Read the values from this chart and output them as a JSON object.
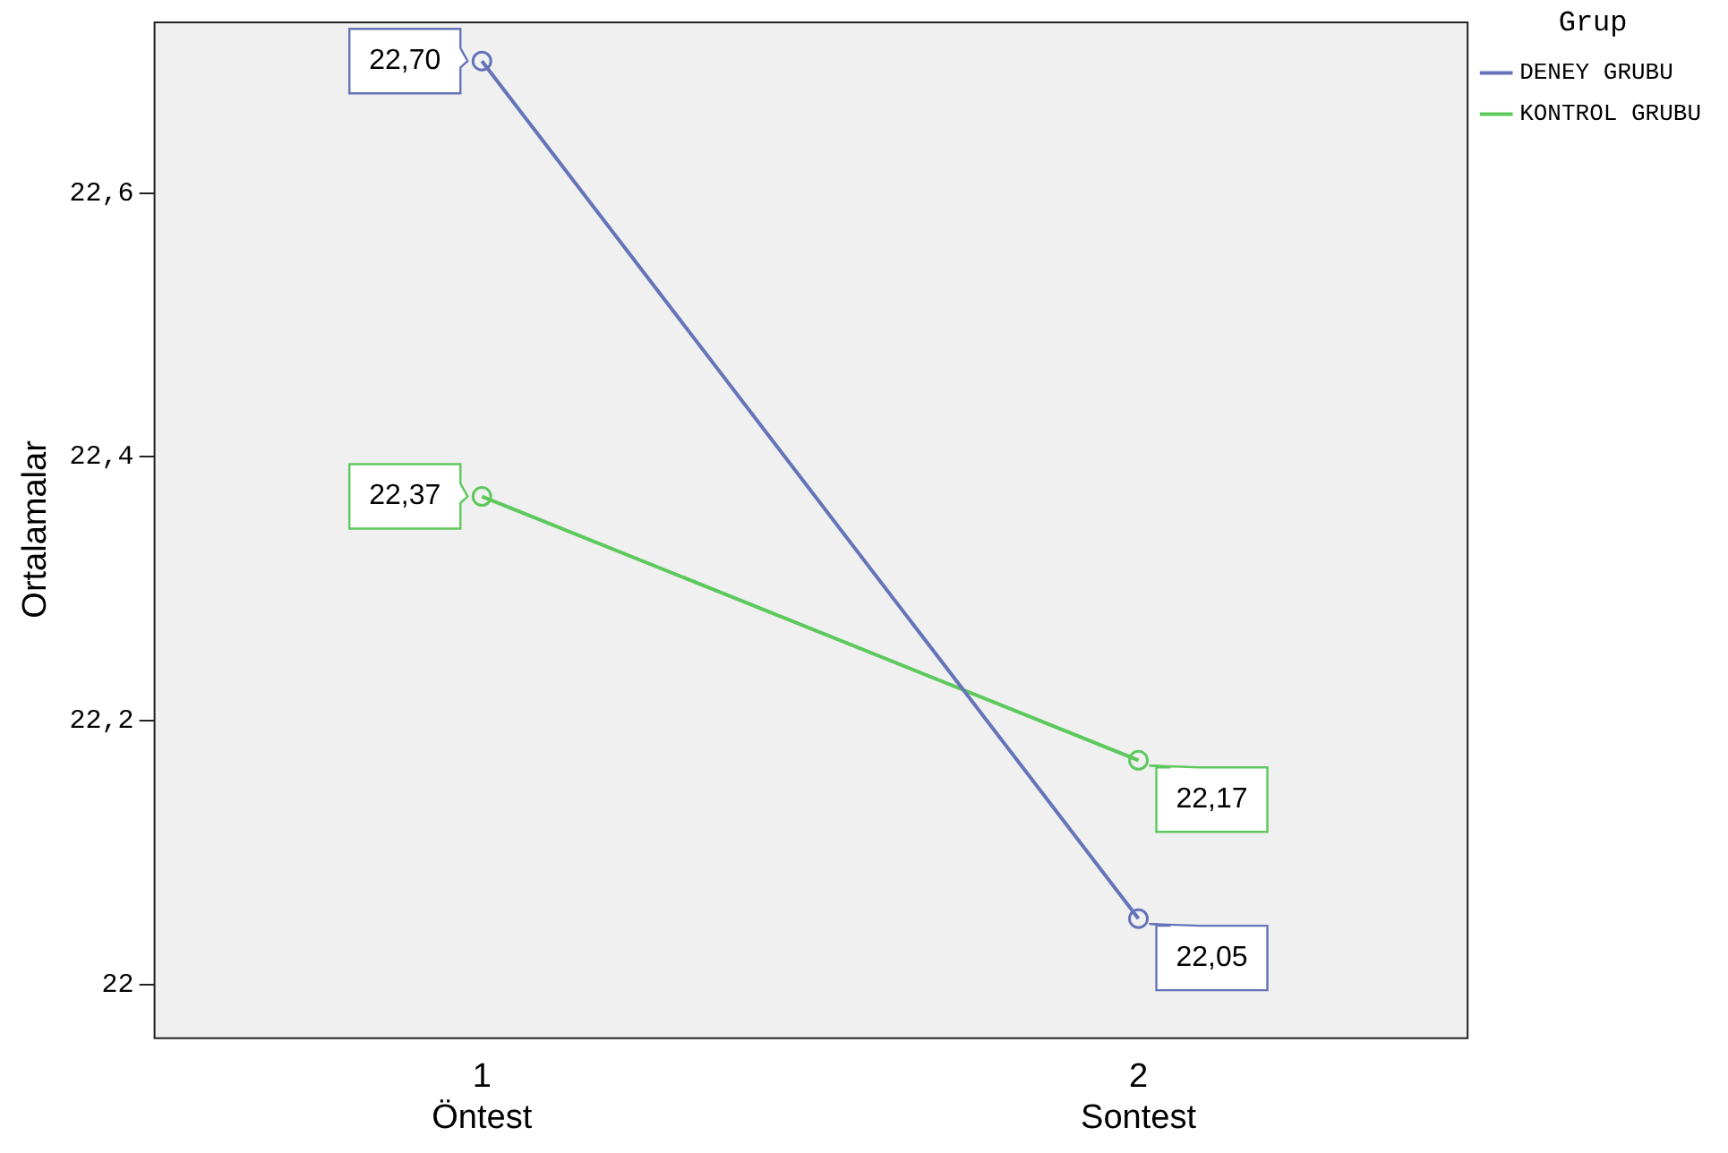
{
  "chart_data": {
    "type": "line",
    "ylabel": "Ortalamalar",
    "legend_title": "Grup",
    "legend": "top right",
    "marker": "circle",
    "grid": false,
    "categories": [
      "1\nÖntest",
      "2\nSontest"
    ],
    "series": [
      {
        "name": "DENEY GRUBU",
        "color": "#6573b9",
        "values": [
          22.7,
          22.05
        ],
        "value_labels": [
          "22,70",
          "22,05"
        ]
      },
      {
        "name": "KONTROL GRUBU",
        "color": "#5dc95d",
        "values": [
          22.37,
          22.17
        ],
        "value_labels": [
          "22,37",
          "22,17"
        ]
      }
    ],
    "ylim": [
      21.96,
      22.73
    ],
    "yticks": [
      {
        "value": 22,
        "label": "22"
      },
      {
        "value": 22.2,
        "label": "22,2"
      },
      {
        "value": 22.4,
        "label": "22,4"
      },
      {
        "value": 22.6,
        "label": "22,6"
      }
    ]
  }
}
